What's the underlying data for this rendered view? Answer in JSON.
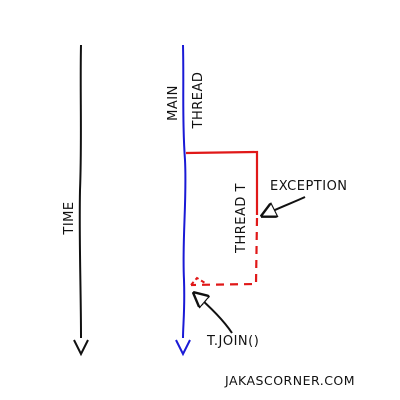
{
  "labels": {
    "time": "TIME",
    "main_thread_line1": "MAIN",
    "main_thread_line2": "THREAD",
    "thread_t": "THREAD T",
    "exception": "EXCEPTION",
    "join": "T.JOIN()",
    "watermark": "JAKASCORNER.COM"
  },
  "colors": {
    "ink": "#111111",
    "main_thread": "#1a1ad6",
    "thread_t": "#e01818"
  }
}
